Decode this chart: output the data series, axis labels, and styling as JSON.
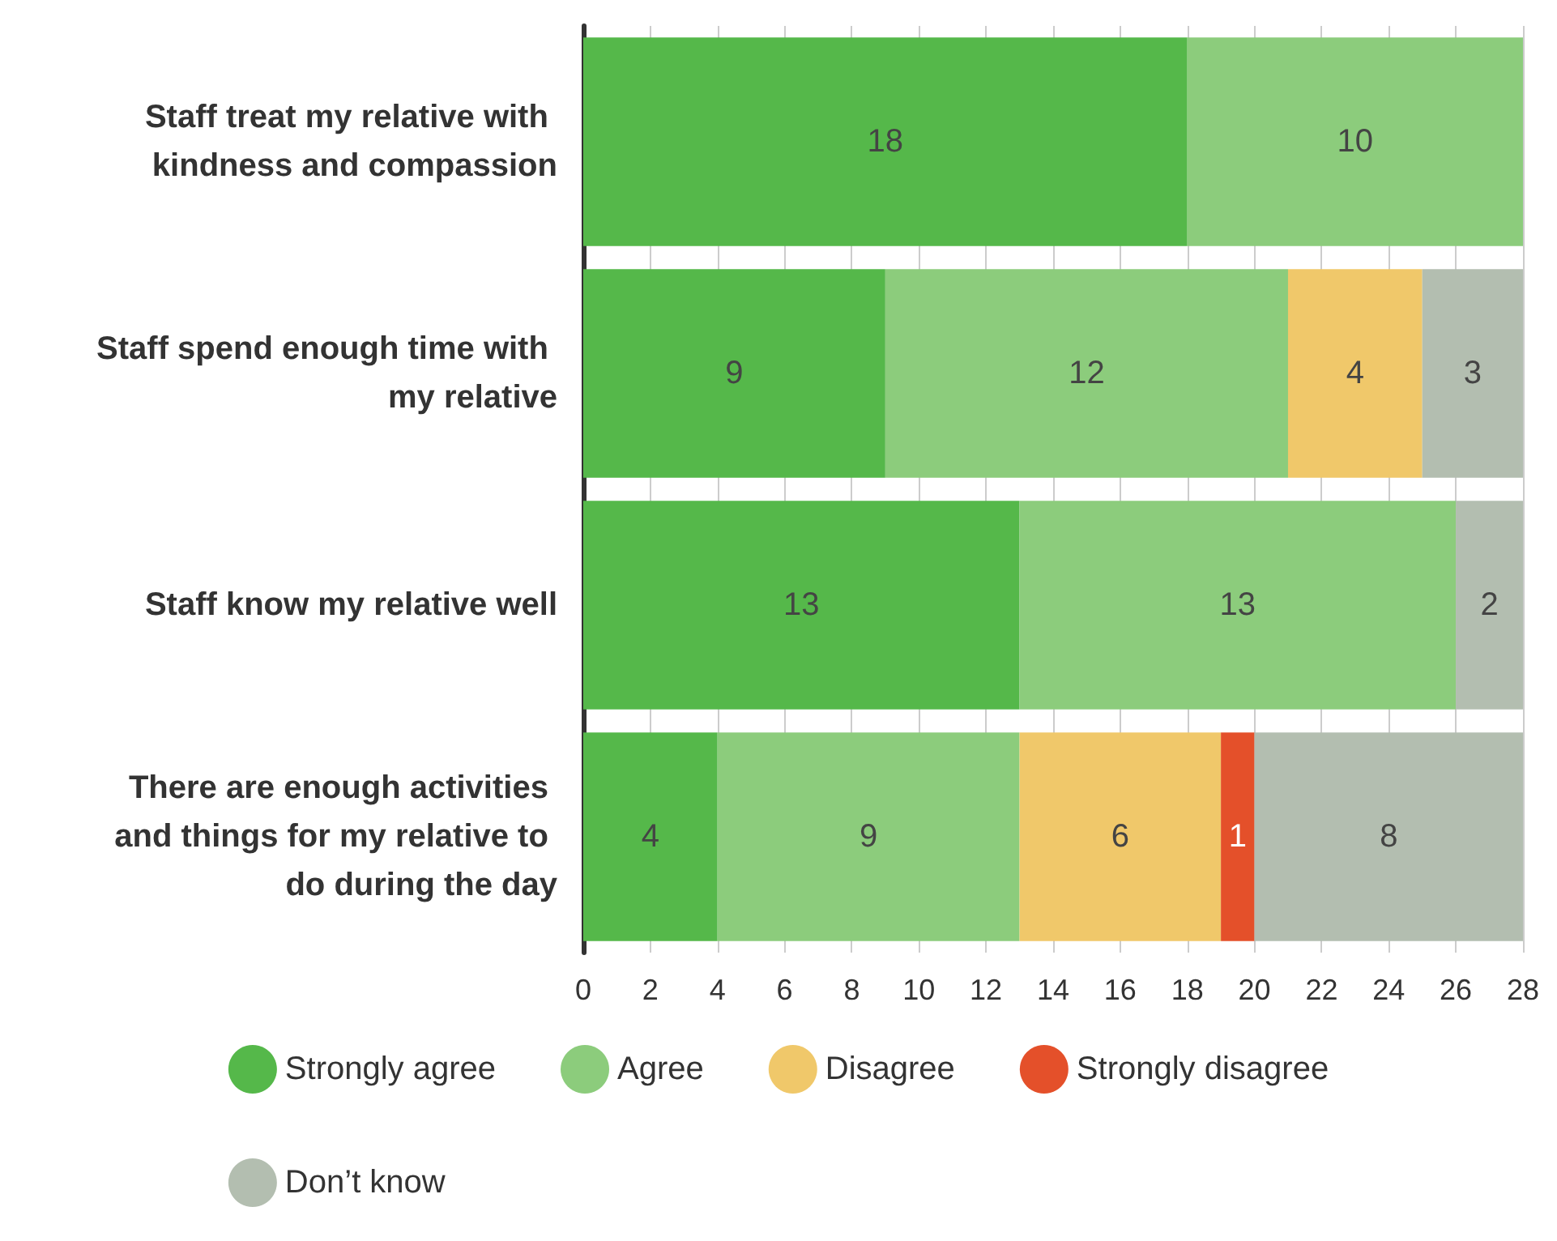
{
  "chart_data": {
    "type": "bar",
    "orientation": "horizontal",
    "stacked": true,
    "categories": [
      "Staff treat my relative with kindness and compassion",
      "Staff spend enough time with my relative",
      "Staff know my relative well",
      "There are enough activities and things for my relative to do during the day"
    ],
    "series": [
      {
        "name": "Strongly agree",
        "color": "#55b84a",
        "values": [
          18,
          9,
          13,
          4
        ]
      },
      {
        "name": "Agree",
        "color": "#8ccc7c",
        "values": [
          10,
          12,
          13,
          9
        ]
      },
      {
        "name": "Disagree",
        "color": "#f0c86a",
        "values": [
          null,
          4,
          null,
          6
        ]
      },
      {
        "name": "Strongly disagree",
        "color": "#e4502a",
        "values": [
          null,
          null,
          null,
          1
        ]
      },
      {
        "name": "Don’t know",
        "color": "#b3beb0",
        "values": [
          null,
          3,
          2,
          8
        ]
      }
    ],
    "xlim": [
      0,
      28
    ],
    "xticks": [
      0,
      2,
      4,
      6,
      8,
      10,
      12,
      14,
      16,
      18,
      20,
      22,
      24,
      26,
      28
    ],
    "grid": "x",
    "legend": "bottom",
    "data_labels": true
  }
}
